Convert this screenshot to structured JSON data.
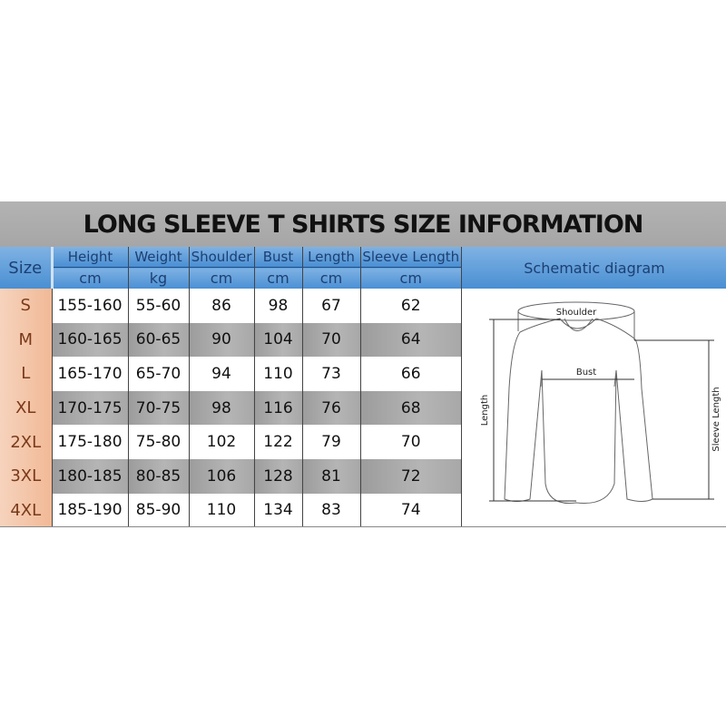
{
  "title": "LONG SLEEVE T SHIRTS SIZE INFORMATION",
  "headers": {
    "size": "Size",
    "columns": [
      {
        "label": "Height",
        "unit": "cm"
      },
      {
        "label": "Weight",
        "unit": "kg"
      },
      {
        "label": "Shoulder",
        "unit": "cm"
      },
      {
        "label": "Bust",
        "unit": "cm"
      },
      {
        "label": "Length",
        "unit": "cm"
      },
      {
        "label": "Sleeve Length",
        "unit": "cm"
      }
    ],
    "diagram": "Schematic diagram"
  },
  "rows": [
    [
      "S",
      "155-160",
      "55-60",
      "86",
      "98",
      "67",
      "62"
    ],
    [
      "M",
      "160-165",
      "60-65",
      "90",
      "104",
      "70",
      "64"
    ],
    [
      "L",
      "165-170",
      "65-70",
      "94",
      "110",
      "73",
      "66"
    ],
    [
      "XL",
      "170-175",
      "70-75",
      "98",
      "116",
      "76",
      "68"
    ],
    [
      "2XL",
      "175-180",
      "75-80",
      "102",
      "122",
      "79",
      "70"
    ],
    [
      "3XL",
      "180-185",
      "80-85",
      "106",
      "128",
      "81",
      "72"
    ],
    [
      "4XL",
      "185-190",
      "85-90",
      "110",
      "134",
      "83",
      "74"
    ]
  ],
  "diagram_labels": {
    "shoulder": "Shoulder",
    "bust": "Bust",
    "length": "Length",
    "sleeve": "Sleeve Length"
  }
}
